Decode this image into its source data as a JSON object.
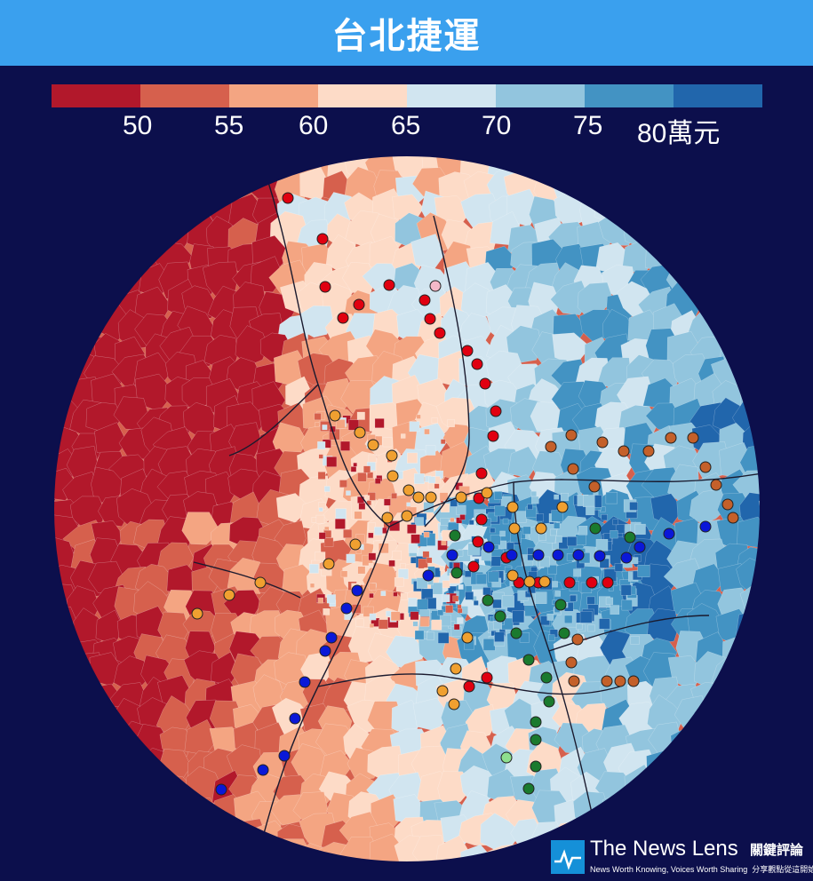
{
  "title": "台北捷運",
  "legend": {
    "colors": [
      "#b2182b",
      "#d6604d",
      "#f4a582",
      "#fddbc7",
      "#d1e5f0",
      "#92c5de",
      "#4393c3",
      "#2166ac"
    ],
    "ticks": [
      "50",
      "55",
      "60",
      "65",
      "70",
      "75",
      "80萬元"
    ]
  },
  "map": {
    "background": "#0c0f4c",
    "boundary_color": "#1a1a2e",
    "line_colors": {
      "red": "#e00010",
      "orange": "#f0a030",
      "green": "#1a7a2e",
      "blue": "#0a18d8",
      "brown": "#c4602a",
      "light_green": "#8ee08e",
      "pink": "#f4b8c8"
    }
  },
  "brand": {
    "name": "The News Lens",
    "name_cn": "關鍵評論",
    "tagline": "News Worth Knowing, Voices Worth Sharing",
    "tagline_cn": "分享觀點從這開始"
  }
}
